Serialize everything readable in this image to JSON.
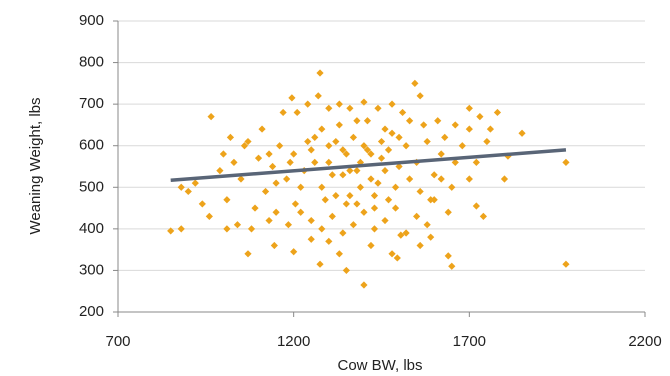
{
  "chart_data": {
    "type": "scatter",
    "x_label": "Cow BW, lbs",
    "y_label": "Weaning Weight, lbs",
    "xlim": [
      700,
      2200
    ],
    "xticks": [
      700,
      1200,
      1700,
      2200
    ],
    "ylim": [
      200,
      900
    ],
    "yticks": [
      200,
      300,
      400,
      500,
      600,
      700,
      800,
      900
    ],
    "grid": true,
    "series": [
      {
        "type": "scatter",
        "color": "#eda31b",
        "x": [
          1300,
          1320,
          1350,
          1380,
          1400,
          1420,
          1450,
          1480,
          1250,
          1280,
          1330,
          1360,
          1390,
          1410,
          1440,
          1470,
          1500,
          1230,
          1260,
          1290,
          1310,
          1340,
          1370,
          1430,
          1460,
          1490,
          1520,
          1550,
          1200,
          1180,
          1160,
          1140,
          1120,
          1100,
          1580,
          1600,
          1620,
          1650,
          1680,
          1700,
          1720,
          1750,
          1780,
          1050,
          1030,
          1010,
          990,
          1070,
          1090,
          1110,
          1210,
          1240,
          1270,
          1300,
          1330,
          1360,
          1400,
          1440,
          1480,
          1510,
          1545,
          1560,
          1275,
          1195,
          1170,
          1220,
          1250,
          1280,
          1310,
          1340,
          1370,
          1400,
          1430,
          1460,
          1490,
          1520,
          1550,
          1580,
          1600,
          1640,
          1205,
          1185,
          1150,
          1130,
          1080,
          1040,
          1010,
          960,
          940,
          920,
          900,
          880,
          850,
          880,
          965,
          1000,
          1020,
          1060,
          1275,
          1400,
          1975,
          1975,
          1650,
          1640,
          1850,
          1810,
          1070,
          1145,
          1200,
          1740,
          1720,
          1495,
          1480,
          1330,
          1590,
          1505,
          1350,
          1420,
          1300,
          1250,
          1560,
          1700,
          1760,
          1800,
          1700,
          1730,
          1660,
          1630,
          1610,
          1570,
          1530,
          1500,
          1460,
          1420,
          1380,
          1340,
          1300,
          1260,
          1220,
          1190,
          1150,
          1130,
          1360,
          1390,
          1450,
          1410,
          1320,
          1280,
          1240,
          1530,
          1560,
          1590,
          1620,
          1660,
          1380,
          1350,
          1430,
          1470
        ],
        "values": [
          560,
          610,
          580,
          540,
          600,
          520,
          570,
          630,
          590,
          500,
          650,
          480,
          560,
          660,
          510,
          590,
          550,
          540,
          620,
          470,
          530,
          590,
          620,
          450,
          640,
          500,
          600,
          560,
          580,
          520,
          600,
          550,
          490,
          570,
          610,
          530,
          580,
          500,
          600,
          640,
          560,
          610,
          680,
          520,
          560,
          470,
          540,
          610,
          450,
          640,
          680,
          700,
          720,
          690,
          700,
          690,
          705,
          690,
          700,
          680,
          750,
          720,
          775,
          715,
          680,
          440,
          420,
          400,
          430,
          390,
          410,
          440,
          400,
          420,
          450,
          390,
          430,
          410,
          470,
          440,
          460,
          410,
          440,
          420,
          400,
          410,
          400,
          430,
          460,
          510,
          490,
          500,
          395,
          400,
          670,
          580,
          620,
          600,
          315,
          265,
          315,
          560,
          310,
          335,
          630,
          575,
          340,
          360,
          345,
          430,
          455,
          330,
          340,
          340,
          380,
          385,
          300,
          360,
          370,
          375,
          360,
          520,
          640,
          520,
          690,
          670,
          650,
          620,
          660,
          650,
          660,
          620,
          540,
          580,
          660,
          530,
          600,
          560,
          500,
          560,
          510,
          580,
          540,
          500,
          610,
          590,
          480,
          640,
          610,
          520,
          490,
          470,
          520,
          560,
          460,
          460,
          480,
          470
        ]
      },
      {
        "type": "line",
        "color": "#596577",
        "x": [
          850,
          1975
        ],
        "values": [
          517,
          590
        ]
      }
    ]
  }
}
